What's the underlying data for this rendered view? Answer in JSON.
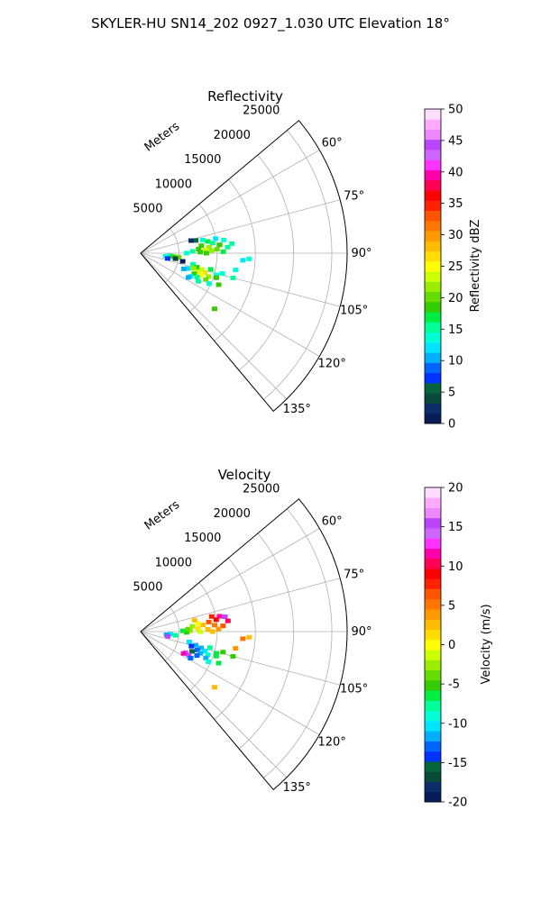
{
  "figure": {
    "suptitle": "SKYLER-HU  SN14_202  0927_1.030 UTC Elevation 18°"
  },
  "chart_data": [
    {
      "type": "polar-sector-scatter",
      "title": "Reflectivity",
      "radial_label": "Meters",
      "radial_ticks": [
        5000,
        10000,
        15000,
        20000,
        25000
      ],
      "rmax": 27000,
      "angle_range_deg": [
        50,
        140
      ],
      "angle_ticks": [
        "60°",
        "75°",
        "90°",
        "105°",
        "120°",
        "135°"
      ],
      "angle_tick_values_deg": [
        60,
        75,
        90,
        105,
        120,
        135
      ],
      "grid": true,
      "colorbar": {
        "label": "Reflectivity dBZ",
        "range": [
          0,
          50
        ],
        "ticks": [
          0,
          5,
          10,
          15,
          20,
          25,
          30,
          35,
          40,
          45,
          50
        ],
        "colors": [
          "#081d58",
          "#0b2e6b",
          "#0a4a3a",
          "#06653d",
          "#0033ff",
          "#0066ff",
          "#00b0ff",
          "#00e5ff",
          "#00ffd5",
          "#00ff99",
          "#00ee44",
          "#33cc00",
          "#66dd00",
          "#99ee00",
          "#ccff00",
          "#ffff00",
          "#ffdd00",
          "#ffbb00",
          "#ff9900",
          "#ff7700",
          "#ff5500",
          "#ff2200",
          "#ff0000",
          "#ff0055",
          "#ff00aa",
          "#ff33ff",
          "#cc66ff",
          "#bb44ff",
          "#ee88ff",
          "#ffaaff",
          "#ffddff"
        ]
      },
      "points": [
        {
          "az": 78,
          "r": 8300,
          "v": 14
        },
        {
          "az": 80,
          "r": 8900,
          "v": 17
        },
        {
          "az": 82,
          "r": 9500,
          "v": 16
        },
        {
          "az": 83,
          "r": 8000,
          "v": 19
        },
        {
          "az": 84,
          "r": 10400,
          "v": 18
        },
        {
          "az": 85,
          "r": 9000,
          "v": 21
        },
        {
          "az": 86,
          "r": 7600,
          "v": 18
        },
        {
          "az": 86,
          "r": 11400,
          "v": 16
        },
        {
          "az": 87,
          "r": 8500,
          "v": 23
        },
        {
          "az": 87,
          "r": 10000,
          "v": 20
        },
        {
          "az": 88,
          "r": 6800,
          "v": 16
        },
        {
          "az": 88,
          "r": 9300,
          "v": 22
        },
        {
          "az": 89,
          "r": 7800,
          "v": 19
        },
        {
          "az": 89,
          "r": 10800,
          "v": 17
        },
        {
          "az": 90,
          "r": 6000,
          "v": 14
        },
        {
          "az": 90,
          "r": 8600,
          "v": 18
        },
        {
          "az": 81,
          "r": 11000,
          "v": 13
        },
        {
          "az": 79,
          "r": 10000,
          "v": 12
        },
        {
          "az": 84,
          "r": 12000,
          "v": 15
        },
        {
          "az": 77,
          "r": 7400,
          "v": 6
        },
        {
          "az": 76,
          "r": 6800,
          "v": 3
        },
        {
          "az": 95,
          "r": 3800,
          "v": 15
        },
        {
          "az": 96,
          "r": 4300,
          "v": 18
        },
        {
          "az": 97,
          "r": 3300,
          "v": 13
        },
        {
          "az": 96,
          "r": 5000,
          "v": 20
        },
        {
          "az": 93,
          "r": 14200,
          "v": 14
        },
        {
          "az": 94,
          "r": 13400,
          "v": 12
        },
        {
          "az": 100,
          "r": 12600,
          "v": 13
        },
        {
          "az": 101,
          "r": 3600,
          "v": 7
        },
        {
          "az": 99,
          "r": 4600,
          "v": 4
        },
        {
          "az": 102,
          "r": 7000,
          "v": 15
        },
        {
          "az": 104,
          "r": 7600,
          "v": 19
        },
        {
          "az": 105,
          "r": 8300,
          "v": 23
        },
        {
          "az": 106,
          "r": 7200,
          "v": 21
        },
        {
          "az": 107,
          "r": 8800,
          "v": 26
        },
        {
          "az": 108,
          "r": 7900,
          "v": 24
        },
        {
          "az": 109,
          "r": 9400,
          "v": 22
        },
        {
          "az": 110,
          "r": 8400,
          "v": 25
        },
        {
          "az": 111,
          "r": 7500,
          "v": 18
        },
        {
          "az": 112,
          "r": 9200,
          "v": 20
        },
        {
          "az": 113,
          "r": 8000,
          "v": 15
        },
        {
          "az": 103,
          "r": 9400,
          "v": 17
        },
        {
          "az": 106,
          "r": 10300,
          "v": 14
        },
        {
          "az": 104,
          "r": 11000,
          "v": 13
        },
        {
          "az": 108,
          "r": 10400,
          "v": 19
        },
        {
          "az": 112,
          "r": 11000,
          "v": 18
        },
        {
          "az": 114,
          "r": 9800,
          "v": 14
        },
        {
          "az": 108,
          "r": 6500,
          "v": 12
        },
        {
          "az": 110,
          "r": 6000,
          "v": 10
        },
        {
          "az": 115,
          "r": 7200,
          "v": 12
        },
        {
          "az": 116,
          "r": 8400,
          "v": 15
        },
        {
          "az": 117,
          "r": 7000,
          "v": 11
        },
        {
          "az": 105,
          "r": 12500,
          "v": 16
        },
        {
          "az": 127,
          "r": 12100,
          "v": 19
        },
        {
          "az": 101,
          "r": 5600,
          "v": 1
        }
      ]
    },
    {
      "type": "polar-sector-scatter",
      "title": "Velocity",
      "radial_label": "Meters",
      "radial_ticks": [
        5000,
        10000,
        15000,
        20000,
        25000
      ],
      "rmax": 27000,
      "angle_range_deg": [
        50,
        140
      ],
      "angle_ticks": [
        "60°",
        "75°",
        "90°",
        "105°",
        "120°",
        "135°"
      ],
      "angle_tick_values_deg": [
        60,
        75,
        90,
        105,
        120,
        135
      ],
      "grid": true,
      "colorbar": {
        "label": "Velocity (m/s)",
        "range": [
          -20,
          20
        ],
        "ticks": [
          -20,
          -15,
          -10,
          -5,
          0,
          5,
          10,
          15,
          20
        ],
        "colors": [
          "#081d58",
          "#0b2e6b",
          "#0a4a3a",
          "#06653d",
          "#0033ff",
          "#0066ff",
          "#00b0ff",
          "#00e5ff",
          "#00ffd5",
          "#00ff99",
          "#00ee44",
          "#33cc00",
          "#66dd00",
          "#99ee00",
          "#ccff00",
          "#ffff00",
          "#ffdd00",
          "#ffbb00",
          "#ff9900",
          "#ff7700",
          "#ff5500",
          "#ff2200",
          "#ff0000",
          "#ff0055",
          "#ff00aa",
          "#ff33ff",
          "#cc66ff",
          "#bb44ff",
          "#ee88ff",
          "#ffaaff",
          "#ffddff"
        ]
      },
      "points": [
        {
          "az": 78,
          "r": 9500,
          "v": 8
        },
        {
          "az": 79,
          "r": 10500,
          "v": 12
        },
        {
          "az": 80,
          "r": 11200,
          "v": 16
        },
        {
          "az": 81,
          "r": 10000,
          "v": 9
        },
        {
          "az": 82,
          "r": 9000,
          "v": 6
        },
        {
          "az": 83,
          "r": 11500,
          "v": 10
        },
        {
          "az": 84,
          "r": 8200,
          "v": 3
        },
        {
          "az": 85,
          "r": 9700,
          "v": 5
        },
        {
          "az": 86,
          "r": 10800,
          "v": 7
        },
        {
          "az": 87,
          "r": 7500,
          "v": 1
        },
        {
          "az": 88,
          "r": 8800,
          "v": 2
        },
        {
          "az": 88,
          "r": 10200,
          "v": 4
        },
        {
          "az": 89,
          "r": 6500,
          "v": -3
        },
        {
          "az": 90,
          "r": 7800,
          "v": -1
        },
        {
          "az": 90,
          "r": 9400,
          "v": 2
        },
        {
          "az": 91,
          "r": 6000,
          "v": -5
        },
        {
          "az": 89,
          "r": 5500,
          "v": -6
        },
        {
          "az": 87,
          "r": 6200,
          "v": -4
        },
        {
          "az": 84,
          "r": 6800,
          "v": -3
        },
        {
          "az": 82,
          "r": 7600,
          "v": 0
        },
        {
          "az": 78,
          "r": 7200,
          "v": 3
        },
        {
          "az": 93,
          "r": 14200,
          "v": 3
        },
        {
          "az": 94,
          "r": 13400,
          "v": 5
        },
        {
          "az": 100,
          "r": 12600,
          "v": 4
        },
        {
          "az": 95,
          "r": 3900,
          "v": -10
        },
        {
          "az": 96,
          "r": 4600,
          "v": -8
        },
        {
          "az": 97,
          "r": 3400,
          "v": -12
        },
        {
          "az": 100,
          "r": 3600,
          "v": 15
        },
        {
          "az": 102,
          "r": 6500,
          "v": -10
        },
        {
          "az": 104,
          "r": 7400,
          "v": -12
        },
        {
          "az": 105,
          "r": 8200,
          "v": -11
        },
        {
          "az": 106,
          "r": 6900,
          "v": -14
        },
        {
          "az": 107,
          "r": 8800,
          "v": -10
        },
        {
          "az": 108,
          "r": 7800,
          "v": -13
        },
        {
          "az": 109,
          "r": 9300,
          "v": -9
        },
        {
          "az": 110,
          "r": 8300,
          "v": -12
        },
        {
          "az": 111,
          "r": 7200,
          "v": -15
        },
        {
          "az": 112,
          "r": 9200,
          "v": -11
        },
        {
          "az": 113,
          "r": 8000,
          "v": -13
        },
        {
          "az": 103,
          "r": 9300,
          "v": -8
        },
        {
          "az": 106,
          "r": 10300,
          "v": -6
        },
        {
          "az": 104,
          "r": 11100,
          "v": -5
        },
        {
          "az": 108,
          "r": 10400,
          "v": -7
        },
        {
          "az": 112,
          "r": 11000,
          "v": -6
        },
        {
          "az": 114,
          "r": 9700,
          "v": -9
        },
        {
          "az": 115,
          "r": 6500,
          "v": 14
        },
        {
          "az": 116,
          "r": 7000,
          "v": 16
        },
        {
          "az": 117,
          "r": 6300,
          "v": 12
        },
        {
          "az": 118,
          "r": 7400,
          "v": -13
        },
        {
          "az": 105,
          "r": 12500,
          "v": -5
        },
        {
          "az": 127,
          "r": 12100,
          "v": 3
        }
      ]
    }
  ]
}
